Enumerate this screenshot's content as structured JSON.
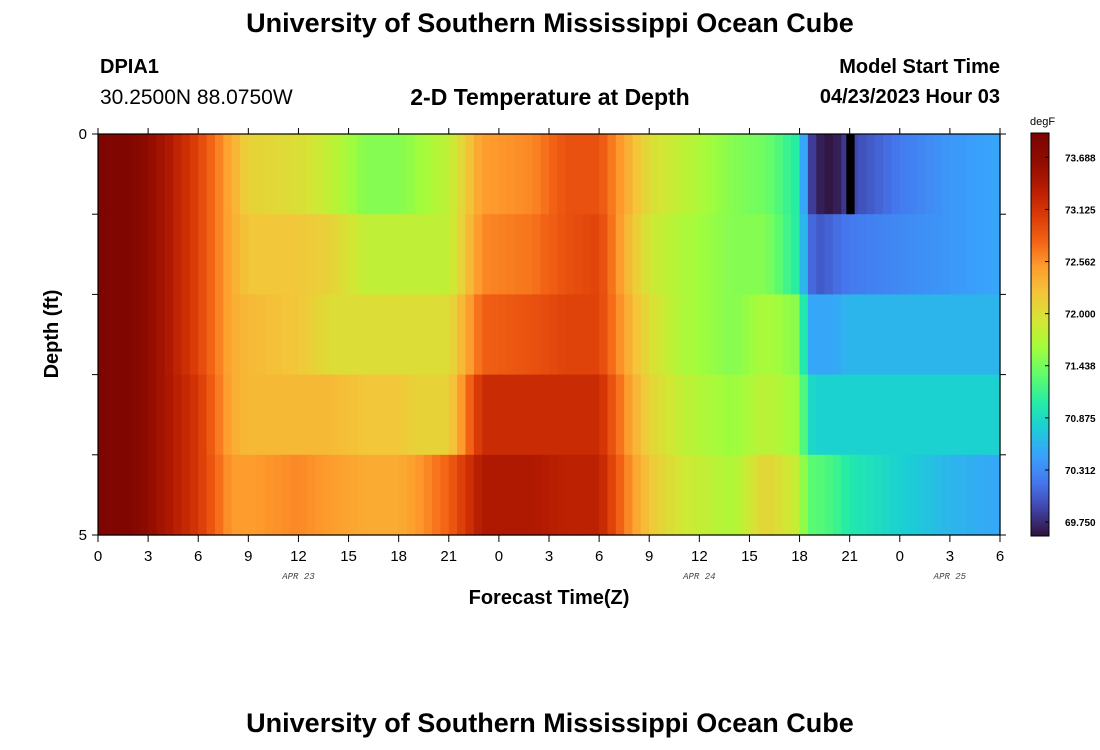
{
  "header": {
    "title": "University of Southern Mississippi Ocean Cube",
    "station_id": "DPIA1",
    "coords": "30.2500N  88.0750W",
    "chart_title": "2-D Temperature at Depth",
    "model_label": "Model Start Time",
    "model_time": "04/23/2023 Hour 03"
  },
  "footer": {
    "title": "University of Southern Mississippi Ocean Cube"
  },
  "chart_data": {
    "type": "heatmap",
    "title": "2-D Temperature at Depth",
    "xlabel": "Forecast Time(Z)",
    "ylabel": "Depth (ft)",
    "x_tick_labels": [
      "0",
      "3",
      "6",
      "9",
      "12",
      "15",
      "18",
      "21",
      "0",
      "3",
      "6",
      "9",
      "12",
      "15",
      "18",
      "21",
      "0",
      "3",
      "6"
    ],
    "x_date_labels": [
      {
        "hour_offset": 12,
        "label": "APR 23"
      },
      {
        "hour_offset": 36,
        "label": "APR 24"
      },
      {
        "hour_offset": 51,
        "label": "APR 25"
      }
    ],
    "x_range_hours": [
      0,
      54
    ],
    "y_range_ft": [
      0,
      5
    ],
    "y_tick_labels": [
      "0",
      "5"
    ],
    "colorbar": {
      "unit": "degF",
      "labels": [
        "73.688",
        "73.125",
        "72.562",
        "72.000",
        "71.438",
        "70.875",
        "70.312",
        "69.750"
      ],
      "vmin": 69.6,
      "vmax": 73.95
    },
    "depth_levels": [
      "0.5",
      "1.5",
      "2.5",
      "3.5",
      "4.5"
    ],
    "keyframe_hours": [
      0,
      2,
      4,
      6,
      8,
      9,
      12,
      14,
      16,
      18,
      19,
      21,
      23,
      26,
      28,
      30,
      32,
      33,
      35,
      38,
      40,
      42,
      42.5,
      43,
      44,
      45,
      48,
      51,
      54
    ],
    "temperature_degF": [
      [
        73.9,
        73.85,
        73.45,
        73.0,
        72.4,
        72.1,
        72.0,
        71.8,
        71.5,
        71.5,
        71.6,
        71.8,
        72.5,
        72.6,
        72.9,
        72.9,
        72.3,
        72.0,
        71.8,
        71.5,
        71.4,
        71.0,
        70.0,
        69.7,
        69.6,
        69.9,
        70.2,
        70.4,
        70.5
      ],
      [
        73.9,
        73.85,
        73.45,
        73.0,
        72.4,
        72.2,
        72.2,
        72.1,
        71.8,
        71.8,
        71.8,
        71.8,
        72.6,
        72.7,
        72.9,
        73.0,
        72.2,
        71.9,
        71.7,
        71.5,
        71.5,
        71.0,
        70.2,
        70.0,
        70.1,
        70.2,
        70.3,
        70.4,
        70.5
      ],
      [
        73.9,
        73.85,
        73.45,
        73.0,
        72.4,
        72.3,
        72.2,
        72.0,
        72.0,
        72.0,
        72.0,
        72.0,
        72.8,
        72.9,
        73.0,
        73.0,
        72.3,
        72.0,
        71.7,
        71.5,
        71.7,
        71.5,
        70.5,
        70.5,
        70.5,
        70.6,
        70.6,
        70.6,
        70.6
      ],
      [
        73.9,
        73.85,
        73.45,
        73.1,
        72.4,
        72.3,
        72.3,
        72.3,
        72.2,
        72.2,
        72.1,
        72.1,
        73.2,
        73.2,
        73.2,
        73.2,
        72.4,
        72.1,
        71.8,
        71.6,
        71.8,
        71.6,
        70.9,
        70.8,
        70.8,
        70.8,
        70.8,
        70.8,
        70.8
      ],
      [
        73.9,
        73.85,
        73.45,
        73.1,
        72.5,
        72.5,
        72.6,
        72.5,
        72.4,
        72.4,
        72.5,
        72.8,
        73.4,
        73.4,
        73.3,
        73.3,
        72.5,
        72.2,
        71.9,
        71.7,
        72.1,
        71.8,
        71.3,
        71.3,
        71.2,
        71.0,
        70.8,
        70.6,
        70.5
      ]
    ],
    "anomaly": {
      "hour_start": 44.8,
      "hour_end": 45.3,
      "depth_level": 0,
      "color": "#000000"
    }
  }
}
